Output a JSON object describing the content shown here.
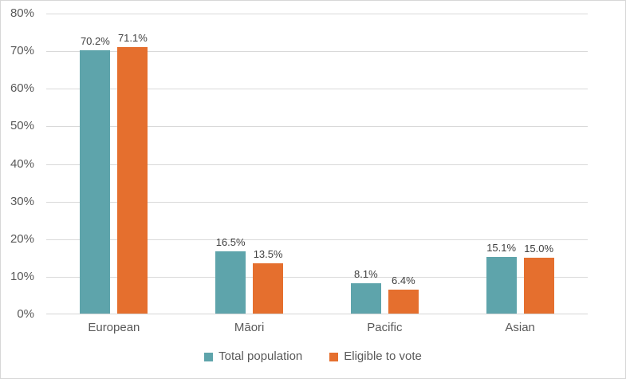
{
  "chart_data": {
    "type": "bar",
    "title": "",
    "xlabel": "",
    "ylabel": "",
    "categories": [
      "European",
      "Māori",
      "Pacific",
      "Asian"
    ],
    "series": [
      {
        "name": "Total population",
        "color": "#5EA4AB",
        "values": [
          70.2,
          16.5,
          8.1,
          15.1
        ]
      },
      {
        "name": "Eligible to vote",
        "color": "#E56F2E",
        "values": [
          71.1,
          13.5,
          6.4,
          15.0
        ]
      }
    ],
    "data_labels": [
      [
        "70.2%",
        "16.5%",
        "8.1%",
        "15.1%"
      ],
      [
        "71.1%",
        "13.5%",
        "6.4%",
        "15.0%"
      ]
    ],
    "ylim": [
      0,
      80
    ],
    "ytick_step": 10,
    "ytick_labels": [
      "0%",
      "10%",
      "20%",
      "30%",
      "40%",
      "50%",
      "60%",
      "70%",
      "80%"
    ],
    "grid": true,
    "legend_position": "bottom"
  },
  "legend": {
    "items": [
      {
        "label": "Total population",
        "color": "#5EA4AB"
      },
      {
        "label": "Eligible to vote",
        "color": "#E56F2E"
      }
    ]
  },
  "colors": {
    "gridline": "#d9d9d9",
    "frame_border": "#d7d7d7",
    "axis_text": "#595959",
    "data_label_text": "#404040",
    "background": "#ffffff"
  }
}
